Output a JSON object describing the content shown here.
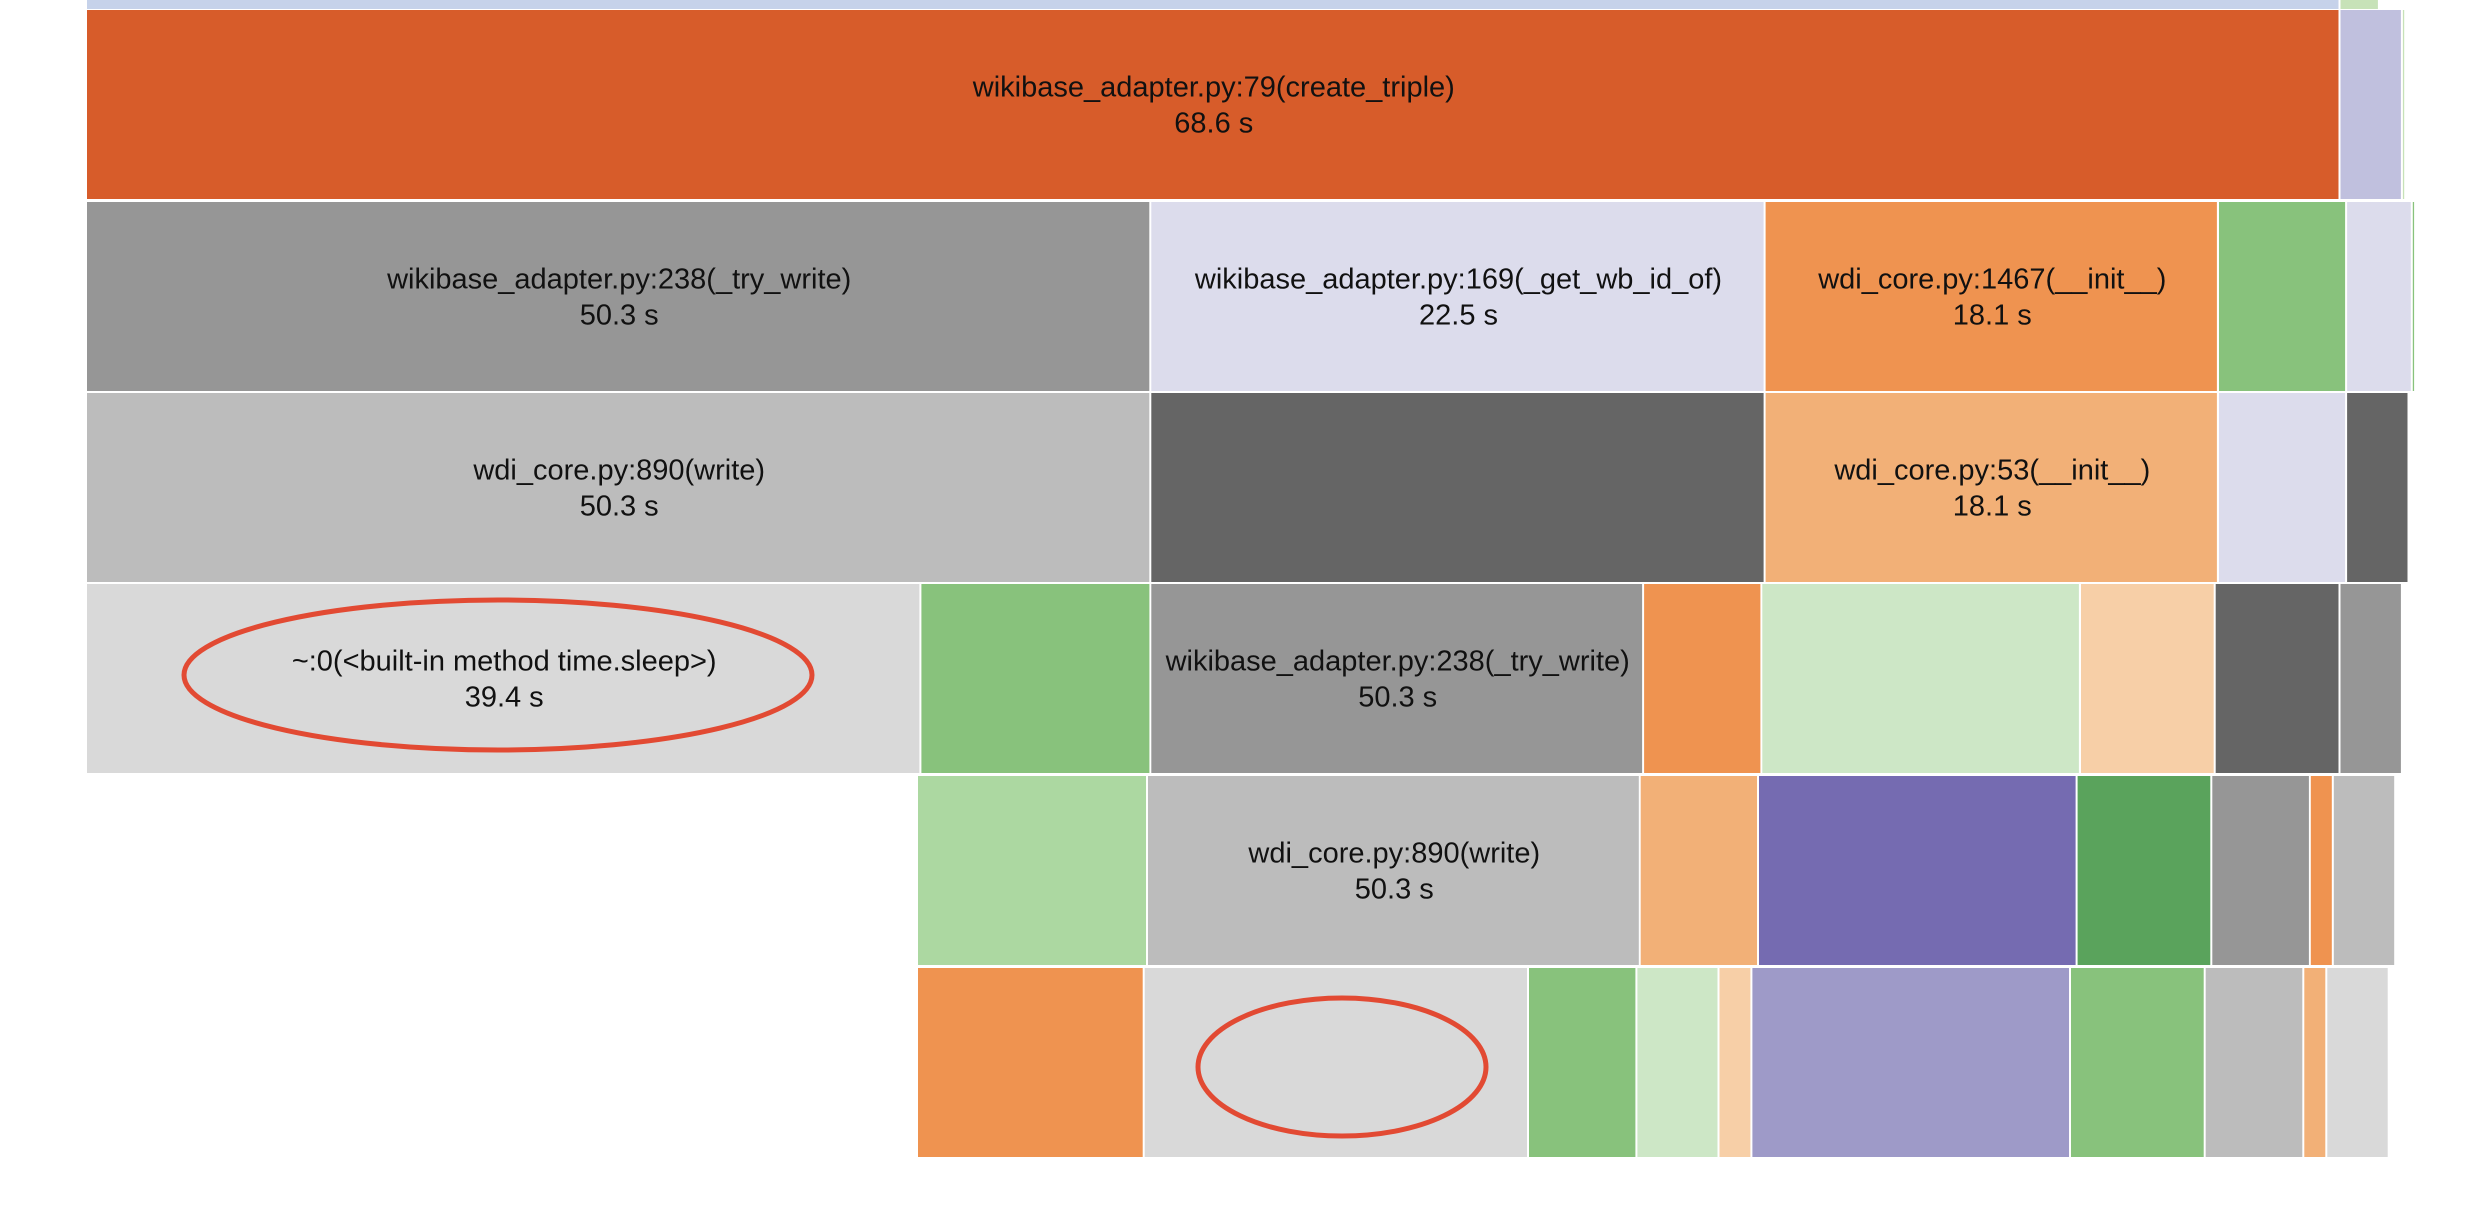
{
  "chart_data": {
    "type": "icicle",
    "unit": "s",
    "colors": {
      "annotation": "#e24a33"
    },
    "rows": [
      {
        "level": 0,
        "frames": [
          {
            "color": "#c6d2ea",
            "value": 68.6,
            "label": ""
          },
          {
            "color": "#c7e2b8",
            "value": 1.2,
            "label": ""
          }
        ]
      },
      {
        "level": 1,
        "frames": [
          {
            "color": "#d75c2a",
            "value": 68.6,
            "label": "wikibase_adapter.py:79(create_triple)",
            "time": "68.6 s"
          },
          {
            "color": "#c0c0de",
            "value": 1.9,
            "label": ""
          },
          {
            "color": "#c7e2b8",
            "value": 0.1,
            "label": ""
          }
        ]
      },
      {
        "level": 2,
        "frames": [
          {
            "color": "#969696",
            "value": 32.4,
            "label": "wikibase_adapter.py:238(_try_write)",
            "time": "50.3 s"
          },
          {
            "color": "#dcdcec",
            "value": 18.7,
            "label": "wikibase_adapter.py:169(_get_wb_id_of)",
            "time": "22.5 s"
          },
          {
            "color": "#ef9350",
            "value": 13.8,
            "label": "wdi_core.py:1467(__init__)",
            "time": "18.1 s"
          },
          {
            "color": "#88c27c",
            "value": 3.9,
            "label": ""
          },
          {
            "color": "#dcdcec",
            "value": 2.0,
            "label": ""
          },
          {
            "color": "#88c27c",
            "value": 0.1,
            "label": ""
          }
        ]
      },
      {
        "level": 3,
        "frames": [
          {
            "color": "#bcbcbc",
            "value": 32.4,
            "label": "wdi_core.py:890(write)",
            "time": "50.3 s"
          },
          {
            "color": "#656565",
            "value": 18.7,
            "label": ""
          },
          {
            "color": "#f2b077",
            "value": 13.8,
            "label": "wdi_core.py:53(__init__)",
            "time": "18.1 s"
          },
          {
            "color": "#dcdcec",
            "value": 3.9,
            "label": ""
          },
          {
            "color": "#656565",
            "value": 1.9,
            "label": ""
          }
        ]
      },
      {
        "level": 4,
        "frames": [
          {
            "color": "#d9d9d9",
            "value": 25.4,
            "label": "~:0(<built-in method time.sleep>)",
            "time": "39.4 s"
          },
          {
            "color": "#88c27c",
            "value": 7.0,
            "label": ""
          },
          {
            "color": "#969696",
            "value": 15.0,
            "label": "wikibase_adapter.py:238(_try_write)",
            "time": "50.3 s"
          },
          {
            "color": "#ef9350",
            "value": 3.6,
            "label": ""
          },
          {
            "color": "#cde7c6",
            "value": 9.7,
            "label": ""
          },
          {
            "color": "#f7cfa7",
            "value": 4.1,
            "label": ""
          },
          {
            "color": "#656565",
            "value": 3.8,
            "label": ""
          },
          {
            "color": "#969696",
            "value": 1.9,
            "label": ""
          }
        ]
      },
      {
        "level": 5,
        "frames": [
          {
            "color": "#acd8a1",
            "value": 7.0,
            "label": ""
          },
          {
            "color": "#bcbcbc",
            "value": 15.0,
            "label": "wdi_core.py:890(write)",
            "time": "50.3 s"
          },
          {
            "color": "#f2b077",
            "value": 3.6,
            "label": ""
          },
          {
            "color": "#756bb1",
            "value": 9.7,
            "label": ""
          },
          {
            "color": "#5aa35c",
            "value": 4.1,
            "label": ""
          },
          {
            "color": "#969696",
            "value": 3.0,
            "label": ""
          },
          {
            "color": "#ef9350",
            "value": 0.7,
            "label": ""
          },
          {
            "color": "#bcbcbc",
            "value": 1.9,
            "label": ""
          }
        ]
      },
      {
        "level": 6,
        "frames": [
          {
            "color": "#ef9350",
            "value": 6.9,
            "label": ""
          },
          {
            "color": "#d9d9d9",
            "value": 11.7,
            "label": ""
          },
          {
            "color": "#88c27c",
            "value": 3.3,
            "label": ""
          },
          {
            "color": "#cde7c6",
            "value": 2.5,
            "label": ""
          },
          {
            "color": "#f7cfa7",
            "value": 1.0,
            "label": ""
          },
          {
            "color": "#9e9ac8",
            "value": 9.7,
            "label": ""
          },
          {
            "color": "#88c27c",
            "value": 4.1,
            "label": ""
          },
          {
            "color": "#bcbcbc",
            "value": 3.0,
            "label": ""
          },
          {
            "color": "#f2b077",
            "value": 0.7,
            "label": ""
          },
          {
            "color": "#d9d9d9",
            "value": 1.9,
            "label": ""
          }
        ]
      }
    ],
    "annotations": [
      {
        "shape": "ellipse",
        "target": "~:0(<built-in method time.sleep>)"
      },
      {
        "shape": "ellipse",
        "target": "level-6-frame-2"
      }
    ]
  }
}
